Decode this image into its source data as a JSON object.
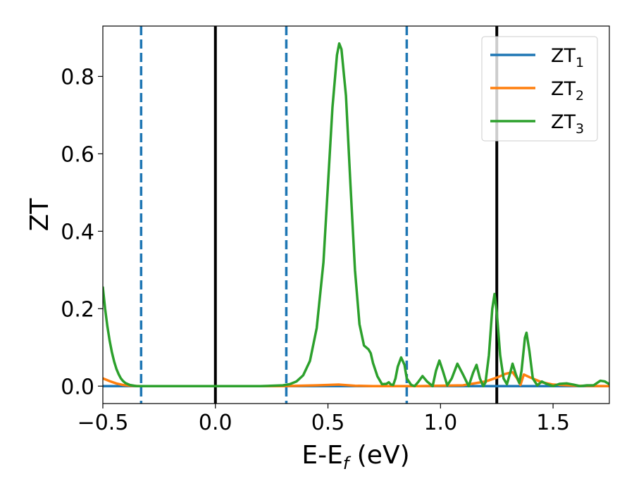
{
  "chart_data": {
    "type": "line",
    "xlabel": "E-E",
    "xlabel_sub": "f",
    "xlabel_unit": " (eV)",
    "ylabel": "ZT",
    "xlim": [
      -0.5,
      1.75
    ],
    "ylim": [
      -0.045,
      0.93
    ],
    "grid": false,
    "legend_position": "top-right",
    "xticks": [
      {
        "value": -0.5,
        "label": "−0.5"
      },
      {
        "value": 0.0,
        "label": "0.0"
      },
      {
        "value": 0.5,
        "label": "0.5"
      },
      {
        "value": 1.0,
        "label": "1.0"
      },
      {
        "value": 1.5,
        "label": "1.5"
      }
    ],
    "yticks": [
      {
        "value": 0.0,
        "label": "0.0"
      },
      {
        "value": 0.2,
        "label": "0.2"
      },
      {
        "value": 0.4,
        "label": "0.4"
      },
      {
        "value": 0.6,
        "label": "0.6"
      },
      {
        "value": 0.8,
        "label": "0.8"
      }
    ],
    "reference_lines": [
      {
        "x": -0.33,
        "style": "dashed",
        "color": "#1f77b4"
      },
      {
        "x": 0.0,
        "style": "solid",
        "color": "#000000"
      },
      {
        "x": 0.315,
        "style": "dashed",
        "color": "#1f77b4"
      },
      {
        "x": 0.85,
        "style": "dashed",
        "color": "#1f77b4"
      },
      {
        "x": 1.25,
        "style": "solid",
        "color": "#000000"
      }
    ],
    "series": [
      {
        "name": "ZT",
        "sub": "1",
        "color": "#1f77b4",
        "points": [
          [
            -0.5,
            0.0
          ],
          [
            1.75,
            0.0
          ]
        ]
      },
      {
        "name": "ZT",
        "sub": "2",
        "color": "#ff7f0e",
        "points": [
          [
            -0.5,
            0.02
          ],
          [
            -0.47,
            0.013
          ],
          [
            -0.44,
            0.007
          ],
          [
            -0.41,
            0.003
          ],
          [
            -0.38,
            0.001
          ],
          [
            -0.33,
            0.0
          ],
          [
            0.3,
            0.0
          ],
          [
            0.45,
            0.002
          ],
          [
            0.55,
            0.004
          ],
          [
            0.62,
            0.001
          ],
          [
            0.7,
            0.0
          ],
          [
            0.9,
            0.0
          ],
          [
            1.1,
            0.002
          ],
          [
            1.2,
            0.012
          ],
          [
            1.25,
            0.022
          ],
          [
            1.29,
            0.032
          ],
          [
            1.32,
            0.036
          ],
          [
            1.34,
            0.02
          ],
          [
            1.355,
            0.003
          ],
          [
            1.37,
            0.03
          ],
          [
            1.4,
            0.022
          ],
          [
            1.45,
            0.01
          ],
          [
            1.5,
            0.004
          ],
          [
            1.6,
            0.001
          ],
          [
            1.75,
            0.0
          ]
        ]
      },
      {
        "name": "ZT",
        "sub": "3",
        "color": "#2ca02c",
        "points": [
          [
            -0.5,
            0.255
          ],
          [
            -0.49,
            0.2
          ],
          [
            -0.48,
            0.155
          ],
          [
            -0.47,
            0.118
          ],
          [
            -0.46,
            0.088
          ],
          [
            -0.45,
            0.064
          ],
          [
            -0.44,
            0.045
          ],
          [
            -0.43,
            0.031
          ],
          [
            -0.42,
            0.02
          ],
          [
            -0.41,
            0.013
          ],
          [
            -0.4,
            0.008
          ],
          [
            -0.38,
            0.003
          ],
          [
            -0.35,
            0.0
          ],
          [
            0.2,
            0.0
          ],
          [
            0.3,
            0.002
          ],
          [
            0.33,
            0.005
          ],
          [
            0.36,
            0.012
          ],
          [
            0.39,
            0.028
          ],
          [
            0.42,
            0.065
          ],
          [
            0.45,
            0.15
          ],
          [
            0.48,
            0.32
          ],
          [
            0.5,
            0.52
          ],
          [
            0.52,
            0.72
          ],
          [
            0.54,
            0.855
          ],
          [
            0.55,
            0.885
          ],
          [
            0.56,
            0.87
          ],
          [
            0.58,
            0.75
          ],
          [
            0.6,
            0.52
          ],
          [
            0.62,
            0.3
          ],
          [
            0.64,
            0.16
          ],
          [
            0.66,
            0.105
          ],
          [
            0.68,
            0.095
          ],
          [
            0.69,
            0.085
          ],
          [
            0.7,
            0.06
          ],
          [
            0.72,
            0.025
          ],
          [
            0.74,
            0.005
          ],
          [
            0.76,
            0.006
          ],
          [
            0.77,
            0.01
          ],
          [
            0.78,
            0.004
          ],
          [
            0.79,
            0.003
          ],
          [
            0.8,
            0.02
          ],
          [
            0.81,
            0.05
          ],
          [
            0.825,
            0.074
          ],
          [
            0.84,
            0.055
          ],
          [
            0.85,
            0.02
          ],
          [
            0.87,
            0.003
          ],
          [
            0.885,
            0.0
          ],
          [
            0.9,
            0.01
          ],
          [
            0.92,
            0.026
          ],
          [
            0.94,
            0.012
          ],
          [
            0.965,
            0.0
          ],
          [
            0.98,
            0.04
          ],
          [
            0.995,
            0.066
          ],
          [
            1.01,
            0.04
          ],
          [
            1.03,
            0.002
          ],
          [
            1.05,
            0.02
          ],
          [
            1.075,
            0.058
          ],
          [
            1.1,
            0.03
          ],
          [
            1.125,
            0.0
          ],
          [
            1.145,
            0.035
          ],
          [
            1.16,
            0.055
          ],
          [
            1.175,
            0.02
          ],
          [
            1.19,
            0.0
          ],
          [
            1.2,
            0.01
          ],
          [
            1.215,
            0.08
          ],
          [
            1.23,
            0.2
          ],
          [
            1.24,
            0.238
          ],
          [
            1.25,
            0.19
          ],
          [
            1.265,
            0.08
          ],
          [
            1.28,
            0.02
          ],
          [
            1.295,
            0.005
          ],
          [
            1.31,
            0.035
          ],
          [
            1.32,
            0.058
          ],
          [
            1.335,
            0.03
          ],
          [
            1.35,
            0.008
          ],
          [
            1.36,
            0.04
          ],
          [
            1.375,
            0.125
          ],
          [
            1.382,
            0.138
          ],
          [
            1.395,
            0.09
          ],
          [
            1.41,
            0.02
          ],
          [
            1.43,
            0.002
          ],
          [
            1.45,
            0.012
          ],
          [
            1.47,
            0.006
          ],
          [
            1.5,
            0.0
          ],
          [
            1.53,
            0.006
          ],
          [
            1.56,
            0.007
          ],
          [
            1.59,
            0.004
          ],
          [
            1.62,
            0.0
          ],
          [
            1.65,
            0.002
          ],
          [
            1.68,
            0.002
          ],
          [
            1.71,
            0.014
          ],
          [
            1.73,
            0.012
          ],
          [
            1.75,
            0.005
          ]
        ]
      }
    ]
  }
}
